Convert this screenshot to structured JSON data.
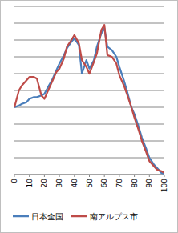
{
  "chart_data": {
    "type": "line",
    "x": [
      0,
      3,
      5,
      8,
      10,
      13,
      15,
      18,
      20,
      23,
      25,
      28,
      30,
      33,
      35,
      38,
      40,
      43,
      45,
      48,
      50,
      53,
      55,
      58,
      60,
      62,
      65,
      68,
      70,
      73,
      75,
      78,
      80,
      83,
      85,
      88,
      90,
      93,
      95,
      98,
      100
    ],
    "series": [
      {
        "name": "日本全国",
        "color": "#4a7ebb",
        "values": [
          4.0,
          4.1,
          4.2,
          4.3,
          4.5,
          4.6,
          4.6,
          4.7,
          4.8,
          5.3,
          5.6,
          6.2,
          6.6,
          7.1,
          7.5,
          7.9,
          8.1,
          7.7,
          6.0,
          6.8,
          6.3,
          6.8,
          7.6,
          8.4,
          8.7,
          7.6,
          7.4,
          7.0,
          6.4,
          5.6,
          5.0,
          4.0,
          3.6,
          2.8,
          2.2,
          1.5,
          1.0,
          0.6,
          0.4,
          0.1,
          0.05
        ]
      },
      {
        "name": "南アルプス市",
        "color": "#be4b48",
        "values": [
          4.0,
          5.0,
          5.3,
          5.6,
          5.8,
          5.8,
          5.7,
          4.7,
          4.5,
          5.1,
          5.5,
          6.1,
          6.3,
          6.9,
          7.6,
          8.0,
          8.3,
          7.8,
          6.8,
          6.4,
          6.0,
          6.7,
          7.2,
          8.6,
          8.9,
          7.1,
          7.0,
          6.6,
          5.9,
          5.3,
          4.8,
          4.0,
          3.4,
          2.6,
          2.0,
          1.3,
          0.8,
          0.5,
          0.3,
          0.2,
          0.1
        ]
      }
    ],
    "xlim": [
      0,
      100
    ],
    "xticks": [
      0,
      10,
      20,
      30,
      40,
      50,
      60,
      70,
      80,
      90,
      100
    ],
    "ylim": [
      0,
      10
    ],
    "yticks": [
      0,
      1,
      2,
      3,
      4,
      5,
      6,
      7,
      8,
      9,
      10
    ],
    "grid": true,
    "tick_labels": "x",
    "legend": "bottom"
  }
}
